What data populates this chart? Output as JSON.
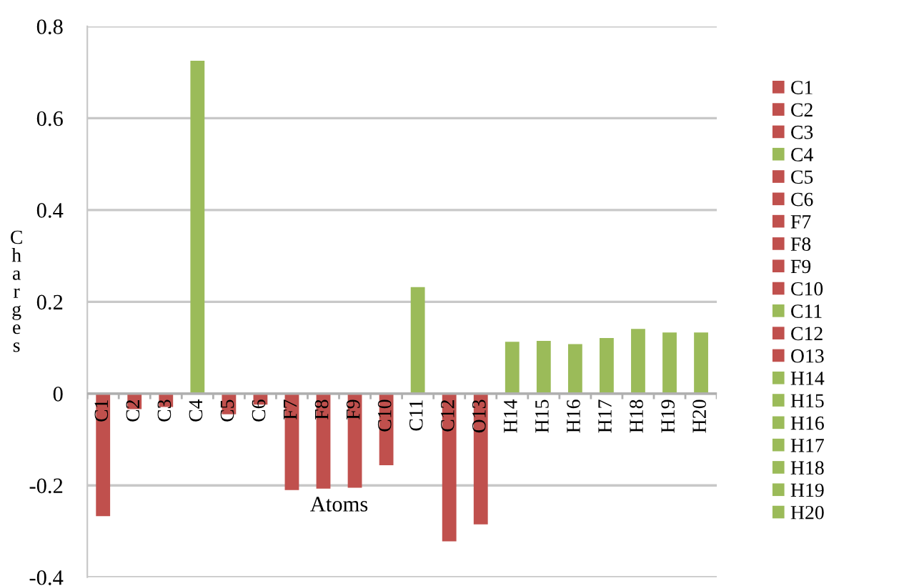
{
  "chart_data": {
    "type": "bar",
    "xlabel": "Atoms",
    "ylabel": "Charges",
    "categories": [
      "C1",
      "C2",
      "C3",
      "C4",
      "C5",
      "C6",
      "F7",
      "F8",
      "F9",
      "C10",
      "C11",
      "C12",
      "O13",
      "H14",
      "H15",
      "H16",
      "H17",
      "H18",
      "H19",
      "H20"
    ],
    "series": [
      {
        "name": "C1",
        "color": "#c0504d",
        "values": [
          -0.267,
          null,
          null,
          null,
          null,
          null,
          null,
          null,
          null,
          null,
          null,
          null,
          null,
          null,
          null,
          null,
          null,
          null,
          null,
          null
        ]
      },
      {
        "name": "C2",
        "color": "#c0504d",
        "values": [
          null,
          -0.034,
          null,
          null,
          null,
          null,
          null,
          null,
          null,
          null,
          null,
          null,
          null,
          null,
          null,
          null,
          null,
          null,
          null,
          null
        ]
      },
      {
        "name": "C3",
        "color": "#c0504d",
        "values": [
          null,
          null,
          -0.029,
          null,
          null,
          null,
          null,
          null,
          null,
          null,
          null,
          null,
          null,
          null,
          null,
          null,
          null,
          null,
          null,
          null
        ]
      },
      {
        "name": "C4",
        "color": "#9bbb59",
        "values": [
          null,
          null,
          null,
          0.725,
          null,
          null,
          null,
          null,
          null,
          null,
          null,
          null,
          null,
          null,
          null,
          null,
          null,
          null,
          null,
          null
        ]
      },
      {
        "name": "C5",
        "color": "#c0504d",
        "values": [
          null,
          null,
          null,
          null,
          -0.045,
          null,
          null,
          null,
          null,
          null,
          null,
          null,
          null,
          null,
          null,
          null,
          null,
          null,
          null,
          null
        ]
      },
      {
        "name": "C6",
        "color": "#c0504d",
        "values": [
          null,
          null,
          null,
          null,
          null,
          -0.024,
          null,
          null,
          null,
          null,
          null,
          null,
          null,
          null,
          null,
          null,
          null,
          null,
          null,
          null
        ]
      },
      {
        "name": "F7",
        "color": "#c0504d",
        "values": [
          null,
          null,
          null,
          null,
          null,
          null,
          -0.21,
          null,
          null,
          null,
          null,
          null,
          null,
          null,
          null,
          null,
          null,
          null,
          null,
          null
        ]
      },
      {
        "name": "F8",
        "color": "#c0504d",
        "values": [
          null,
          null,
          null,
          null,
          null,
          null,
          null,
          -0.207,
          null,
          null,
          null,
          null,
          null,
          null,
          null,
          null,
          null,
          null,
          null,
          null
        ]
      },
      {
        "name": "F9",
        "color": "#c0504d",
        "values": [
          null,
          null,
          null,
          null,
          null,
          null,
          null,
          null,
          -0.205,
          null,
          null,
          null,
          null,
          null,
          null,
          null,
          null,
          null,
          null,
          null
        ]
      },
      {
        "name": "C10",
        "color": "#c0504d",
        "values": [
          null,
          null,
          null,
          null,
          null,
          null,
          null,
          null,
          null,
          -0.156,
          null,
          null,
          null,
          null,
          null,
          null,
          null,
          null,
          null,
          null
        ]
      },
      {
        "name": "C11",
        "color": "#9bbb59",
        "values": [
          null,
          null,
          null,
          null,
          null,
          null,
          null,
          null,
          null,
          null,
          0.232,
          null,
          null,
          null,
          null,
          null,
          null,
          null,
          null,
          null
        ]
      },
      {
        "name": "C12",
        "color": "#c0504d",
        "values": [
          null,
          null,
          null,
          null,
          null,
          null,
          null,
          null,
          null,
          null,
          null,
          -0.322,
          null,
          null,
          null,
          null,
          null,
          null,
          null,
          null
        ]
      },
      {
        "name": "O13",
        "color": "#c0504d",
        "values": [
          null,
          null,
          null,
          null,
          null,
          null,
          null,
          null,
          null,
          null,
          null,
          null,
          -0.285,
          null,
          null,
          null,
          null,
          null,
          null,
          null
        ]
      },
      {
        "name": "H14",
        "color": "#9bbb59",
        "values": [
          null,
          null,
          null,
          null,
          null,
          null,
          null,
          null,
          null,
          null,
          null,
          null,
          null,
          0.113,
          null,
          null,
          null,
          null,
          null,
          null
        ]
      },
      {
        "name": "H15",
        "color": "#9bbb59",
        "values": [
          null,
          null,
          null,
          null,
          null,
          null,
          null,
          null,
          null,
          null,
          null,
          null,
          null,
          null,
          0.115,
          null,
          null,
          null,
          null,
          null
        ]
      },
      {
        "name": "H16",
        "color": "#9bbb59",
        "values": [
          null,
          null,
          null,
          null,
          null,
          null,
          null,
          null,
          null,
          null,
          null,
          null,
          null,
          null,
          null,
          0.108,
          null,
          null,
          null,
          null
        ]
      },
      {
        "name": "H17",
        "color": "#9bbb59",
        "values": [
          null,
          null,
          null,
          null,
          null,
          null,
          null,
          null,
          null,
          null,
          null,
          null,
          null,
          null,
          null,
          null,
          0.121,
          null,
          null,
          null
        ]
      },
      {
        "name": "H18",
        "color": "#9bbb59",
        "values": [
          null,
          null,
          null,
          null,
          null,
          null,
          null,
          null,
          null,
          null,
          null,
          null,
          null,
          null,
          null,
          null,
          null,
          0.141,
          null,
          null
        ]
      },
      {
        "name": "H19",
        "color": "#9bbb59",
        "values": [
          null,
          null,
          null,
          null,
          null,
          null,
          null,
          null,
          null,
          null,
          null,
          null,
          null,
          null,
          null,
          null,
          null,
          null,
          0.133,
          null
        ]
      },
      {
        "name": "H20",
        "color": "#9bbb59",
        "values": [
          null,
          null,
          null,
          null,
          null,
          null,
          null,
          null,
          null,
          null,
          null,
          null,
          null,
          null,
          null,
          null,
          null,
          null,
          null,
          0.133
        ]
      }
    ],
    "ylim": [
      -0.4,
      0.8
    ],
    "yticks": [
      -0.4,
      -0.2,
      0,
      0.2,
      0.4,
      0.6,
      0.8
    ],
    "grid": "y",
    "legend": "right"
  }
}
